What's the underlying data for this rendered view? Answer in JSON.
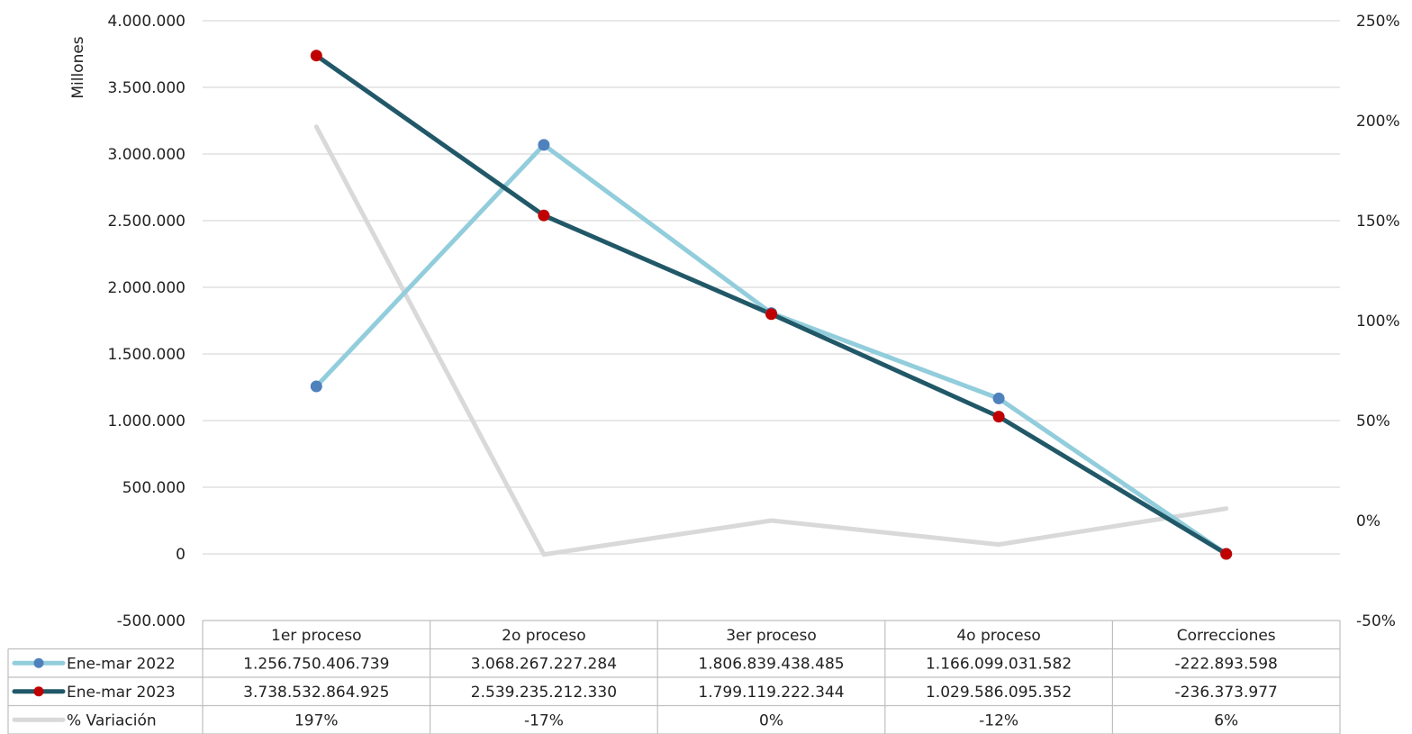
{
  "chart_data": {
    "type": "line",
    "categories": [
      "1er proceso",
      "2o proceso",
      "3er proceso",
      "4o proceso",
      "Correcciones"
    ],
    "ylabel": "Millones",
    "y_left_range": [
      -500000,
      4000000
    ],
    "y_left_ticks": [
      "4.000.000",
      "3.500.000",
      "3.000.000",
      "2.500.000",
      "2.000.000",
      "1.500.000",
      "1.000.000",
      "500.000",
      "0",
      "-500.000"
    ],
    "y_left_tick_values": [
      4000000,
      3500000,
      3000000,
      2500000,
      2000000,
      1500000,
      1000000,
      500000,
      0,
      -500000
    ],
    "y_right_range": [
      -50,
      250
    ],
    "y_right_ticks": [
      "250%",
      "200%",
      "150%",
      "100%",
      "50%",
      "0%",
      "-50%"
    ],
    "y_right_tick_values": [
      250,
      200,
      150,
      100,
      50,
      0,
      -50
    ],
    "grid": true,
    "legend": "data-table",
    "series": [
      {
        "name": "Ene-mar 2022",
        "axis": "left",
        "color": "#92cddc",
        "marker_color": "#4f81bd",
        "values": [
          1256750.406739,
          3068267.227284,
          1806839.438485,
          1166099.031582,
          -222.893598
        ],
        "labels": [
          "1.256.750.406.739",
          "3.068.267.227.284",
          "1.806.839.438.485",
          "1.166.099.031.582",
          "-222.893.598"
        ]
      },
      {
        "name": "Ene-mar 2023",
        "axis": "left",
        "color": "#215868",
        "marker_color": "#c00000",
        "values": [
          3738532.864925,
          2539235.21233,
          1799119.222344,
          1029586.095352,
          -236.373977
        ],
        "labels": [
          "3.738.532.864.925",
          "2.539.235.212.330",
          "1.799.119.222.344",
          "1.029.586.095.352",
          "-236.373.977"
        ]
      },
      {
        "name": "% Variación",
        "axis": "right",
        "color": "#d9d9d9",
        "values": [
          197,
          -17,
          0,
          -12,
          6
        ],
        "labels": [
          "197%",
          "-17%",
          "0%",
          "-12%",
          "6%"
        ]
      }
    ]
  }
}
